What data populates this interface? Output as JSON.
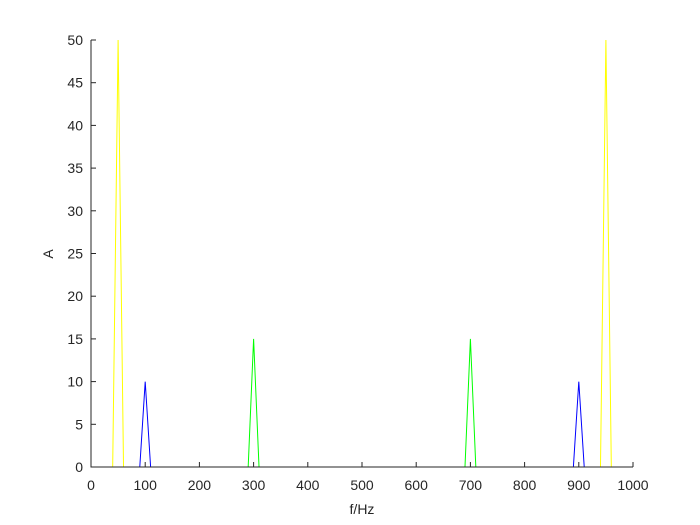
{
  "chart_data": {
    "type": "line",
    "xlabel": "f/Hz",
    "ylabel": "A",
    "xlim": [
      0,
      1000
    ],
    "ylim": [
      0,
      50
    ],
    "xticks": [
      0,
      100,
      200,
      300,
      400,
      500,
      600,
      700,
      800,
      900,
      1000
    ],
    "yticks": [
      0,
      5,
      10,
      15,
      20,
      25,
      30,
      35,
      40,
      45,
      50
    ],
    "series": [
      {
        "color": "#ffff00",
        "x": [
          0,
          40,
          50,
          60,
          940,
          950,
          960,
          1000
        ],
        "values": [
          0,
          0,
          50,
          0,
          0,
          50,
          0,
          0
        ]
      },
      {
        "color": "#0000ff",
        "x": [
          0,
          90,
          100,
          110,
          890,
          900,
          910,
          1000
        ],
        "values": [
          0,
          0,
          10,
          0,
          0,
          10,
          0,
          0
        ]
      },
      {
        "color": "#00ff00",
        "x": [
          0,
          290,
          300,
          310,
          690,
          700,
          710,
          1000
        ],
        "values": [
          0,
          0,
          15,
          0,
          0,
          15,
          0,
          0
        ]
      }
    ]
  }
}
